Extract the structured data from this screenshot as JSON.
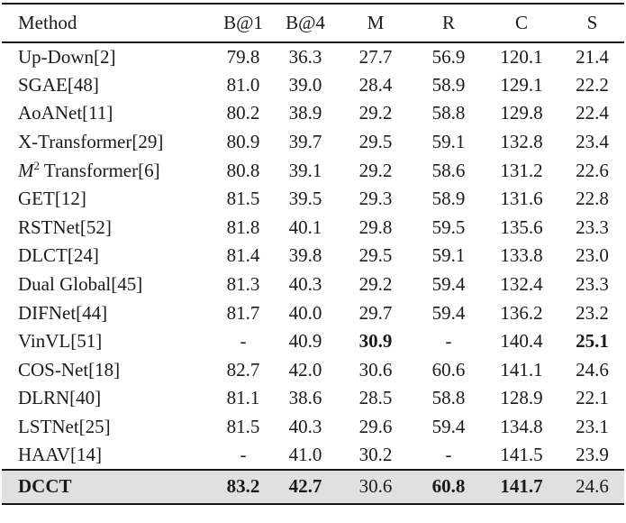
{
  "table": {
    "highlight_color": "#e0e0e0",
    "rule_color": "#161616",
    "columns": [
      "Method",
      "B@1",
      "B@4",
      "M",
      "R",
      "C",
      "S"
    ],
    "rows": [
      {
        "method": [
          {
            "text": "Up-Down[2]"
          }
        ],
        "values": [
          "79.8",
          "36.3",
          "27.7",
          "56.9",
          "120.1",
          "21.4"
        ]
      },
      {
        "method": [
          {
            "text": "SGAE[48]"
          }
        ],
        "values": [
          "81.0",
          "39.0",
          "28.4",
          "58.9",
          "129.1",
          "22.2"
        ]
      },
      {
        "method": [
          {
            "text": "AoANet[11]"
          }
        ],
        "values": [
          "80.2",
          "38.9",
          "29.2",
          "58.8",
          "129.8",
          "22.4"
        ]
      },
      {
        "method": [
          {
            "text": "X-Transformer[29]"
          }
        ],
        "values": [
          "80.9",
          "39.7",
          "29.5",
          "59.1",
          "132.8",
          "23.4"
        ]
      },
      {
        "method": [
          {
            "text": "M",
            "italic": true
          },
          {
            "text": "2",
            "sup": true
          },
          {
            "text": " Transformer[6]"
          }
        ],
        "values": [
          "80.8",
          "39.1",
          "29.2",
          "58.6",
          "131.2",
          "22.6"
        ]
      },
      {
        "method": [
          {
            "text": "GET[12]"
          }
        ],
        "values": [
          "81.5",
          "39.5",
          "29.3",
          "58.9",
          "131.6",
          "22.8"
        ]
      },
      {
        "method": [
          {
            "text": "RSTNet[52]"
          }
        ],
        "values": [
          "81.8",
          "40.1",
          "29.8",
          "59.5",
          "135.6",
          "23.3"
        ]
      },
      {
        "method": [
          {
            "text": "DLCT[24]"
          }
        ],
        "values": [
          "81.4",
          "39.8",
          "29.5",
          "59.1",
          "133.8",
          "23.0"
        ]
      },
      {
        "method": [
          {
            "text": "Dual Global[45]"
          }
        ],
        "values": [
          "81.3",
          "40.3",
          "29.2",
          "59.4",
          "132.4",
          "23.3"
        ]
      },
      {
        "method": [
          {
            "text": "DIFNet[44]"
          }
        ],
        "values": [
          "81.7",
          "40.0",
          "29.7",
          "59.4",
          "136.2",
          "23.2"
        ]
      },
      {
        "method": [
          {
            "text": "VinVL[51]"
          }
        ],
        "values": [
          "-",
          "40.9",
          "30.9",
          "-",
          "140.4",
          "25.1"
        ],
        "bold": [
          false,
          false,
          true,
          false,
          false,
          true
        ]
      },
      {
        "method": [
          {
            "text": "COS-Net[18]"
          }
        ],
        "values": [
          "82.7",
          "42.0",
          "30.6",
          "60.6",
          "141.1",
          "24.6"
        ]
      },
      {
        "method": [
          {
            "text": "DLRN[40]"
          }
        ],
        "values": [
          "81.1",
          "38.6",
          "28.5",
          "58.8",
          "128.9",
          "22.1"
        ]
      },
      {
        "method": [
          {
            "text": "LSTNet[25]"
          }
        ],
        "values": [
          "81.5",
          "40.3",
          "29.6",
          "59.4",
          "134.8",
          "23.1"
        ]
      },
      {
        "method": [
          {
            "text": "HAAV[14]"
          }
        ],
        "values": [
          "-",
          "41.0",
          "30.2",
          "-",
          "141.5",
          "23.9"
        ]
      },
      {
        "method": [
          {
            "text": "DCCT"
          }
        ],
        "method_bold": true,
        "highlight": true,
        "values": [
          "83.2",
          "42.7",
          "30.6",
          "60.8",
          "141.7",
          "24.6"
        ],
        "bold": [
          true,
          true,
          false,
          true,
          true,
          false
        ]
      }
    ]
  }
}
